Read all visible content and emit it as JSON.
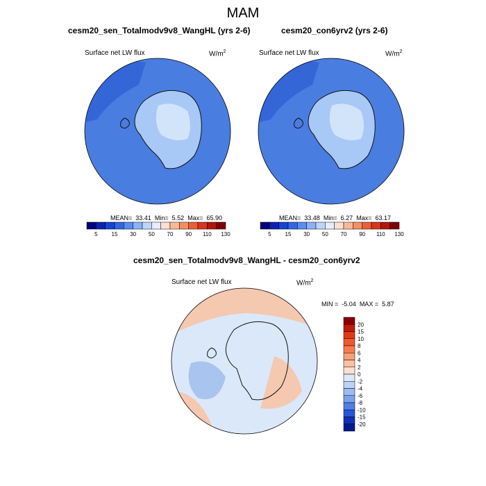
{
  "figure_title": "MAM",
  "colors": {
    "ocean": "#4a7de0",
    "ocean_dark": "#3466d8",
    "land": "#a8c8f5",
    "land_light": "#d2e4fa",
    "diff_base": "#dbe8f9",
    "diff_warm": "#f5c8b0",
    "diff_cool": "#a9c4ee"
  },
  "chart_data": [
    {
      "type": "heatmap",
      "projection": "polar-stereographic-south",
      "title": "cesm20_sen_Totalmodv9v8_WangHL (yrs 2-6)",
      "variable": "Surface net LW flux",
      "units": "W/m",
      "units_sup": "2",
      "stats": {
        "mean_label": "MEAN=",
        "mean": "33.41",
        "min_label": "Min=",
        "min": "5.52",
        "max_label": "Max=",
        "max": "65.90"
      },
      "colorbar": {
        "orientation": "horizontal",
        "levels": [
          5,
          15,
          30,
          50,
          70,
          90,
          110,
          130
        ],
        "colors": [
          "#00007c",
          "#0c21b4",
          "#1644d6",
          "#3266e6",
          "#5a8cf2",
          "#89b2f7",
          "#bcd5fb",
          "#e4eefd",
          "#fde0d2",
          "#fbb999",
          "#f68e64",
          "#ec5f36",
          "#d8351b",
          "#b4150a",
          "#800000"
        ]
      }
    },
    {
      "type": "heatmap",
      "projection": "polar-stereographic-south",
      "title": "cesm20_con6yrv2 (yrs 2-6)",
      "variable": "Surface net LW flux",
      "units": "W/m",
      "units_sup": "2",
      "stats": {
        "mean_label": "MEAN=",
        "mean": "33.48",
        "min_label": "Min=",
        "min": "6.27",
        "max_label": "Max=",
        "max": "63.17"
      },
      "colorbar": {
        "orientation": "horizontal",
        "levels": [
          5,
          15,
          30,
          50,
          70,
          90,
          110,
          130
        ],
        "colors": [
          "#00007c",
          "#0c21b4",
          "#1644d6",
          "#3266e6",
          "#5a8cf2",
          "#89b2f7",
          "#bcd5fb",
          "#e4eefd",
          "#fde0d2",
          "#fbb999",
          "#f68e64",
          "#ec5f36",
          "#d8351b",
          "#b4150a",
          "#800000"
        ]
      }
    },
    {
      "type": "heatmap",
      "projection": "polar-stereographic-south",
      "title": "cesm20_sen_Totalmodv9v8_WangHL - cesm20_con6yrv2",
      "variable": "Surface net LW flux",
      "units": "W/m",
      "units_sup": "2",
      "stats": {
        "min_label": "MIN =",
        "min": "-5.04",
        "max_label": "MAX =",
        "max": "5.87"
      },
      "colorbar": {
        "orientation": "vertical",
        "levels": [
          "20",
          "15",
          "10",
          "8",
          "6",
          "4",
          "2",
          "0",
          "-2",
          "-4",
          "-6",
          "-8",
          "-10",
          "-15",
          "-20"
        ],
        "colors": [
          "#8b0000",
          "#c41a0a",
          "#e03a14",
          "#ef5a2c",
          "#f67c50",
          "#f99f78",
          "#fbc1a3",
          "#fde0cf",
          "#dde9fb",
          "#bcd3f7",
          "#9cbcf2",
          "#7ba3ec",
          "#4f7fe3",
          "#2a55d6",
          "#1030b8",
          "#001a8c"
        ]
      }
    }
  ]
}
